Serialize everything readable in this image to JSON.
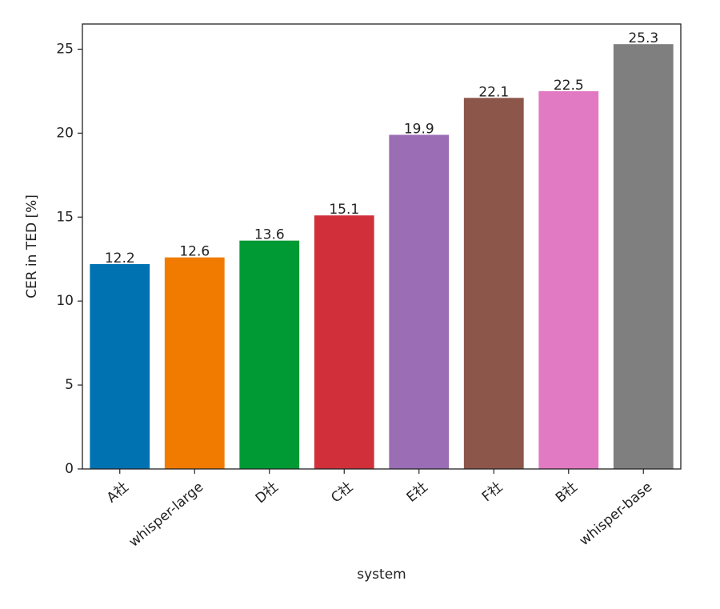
{
  "chart_data": {
    "type": "bar",
    "title": "",
    "xlabel": "system",
    "ylabel": "CER in TED [%]",
    "categories": [
      "A社",
      "whisper-large",
      "D社",
      "C社",
      "E社",
      "F社",
      "B社",
      "whisper-base"
    ],
    "values": [
      12.2,
      12.6,
      13.6,
      15.1,
      19.9,
      22.1,
      22.5,
      25.3
    ],
    "data_labels": [
      "12.2",
      "12.6",
      "13.6",
      "15.1",
      "19.9",
      "22.1",
      "22.5",
      "25.3"
    ],
    "colors": [
      "#0072b2",
      "#f07b00",
      "#009a35",
      "#d1303a",
      "#9a6db5",
      "#8c564b",
      "#e17ac2",
      "#7f7f7f"
    ],
    "yticks": [
      0,
      5,
      10,
      15,
      20,
      25
    ],
    "ylim": [
      0,
      26.5
    ],
    "x_tick_rotation_deg": 40,
    "grid": false,
    "legend": "none"
  }
}
